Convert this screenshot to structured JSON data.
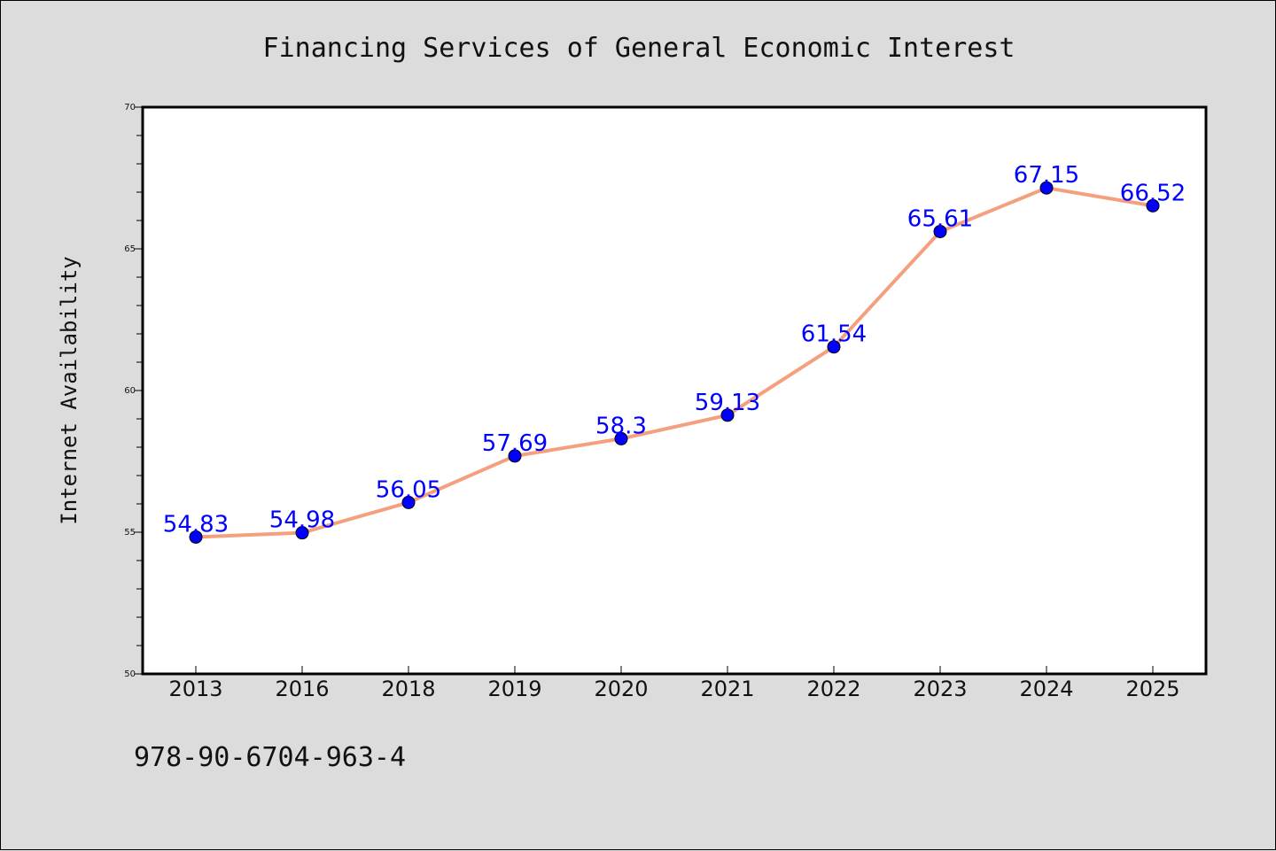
{
  "chart_data": {
    "type": "line",
    "title": "Financing Services of General Economic Interest",
    "xlabel": "",
    "ylabel": "Internet Availability",
    "categories": [
      "2013",
      "2016",
      "2018",
      "2019",
      "2020",
      "2021",
      "2022",
      "2023",
      "2024",
      "2025"
    ],
    "series": [
      {
        "values": [
          54.83,
          54.98,
          56.05,
          57.69,
          58.3,
          59.13,
          61.54,
          65.61,
          67.15,
          66.52
        ],
        "labels": [
          "54.83",
          "54.98",
          "56.05",
          "57.69",
          "58.3",
          "59.13",
          "61.54",
          "65.61",
          "67.15",
          "66.52"
        ],
        "line_color": "#f4a07f",
        "marker_color": "#0000ff"
      }
    ],
    "ylim": [
      50,
      70
    ],
    "yticks": [
      "50",
      "55",
      "60",
      "65",
      "70"
    ],
    "grid": false,
    "legend": "none"
  },
  "annotation": {
    "text": "978-90-6704-963-4"
  }
}
